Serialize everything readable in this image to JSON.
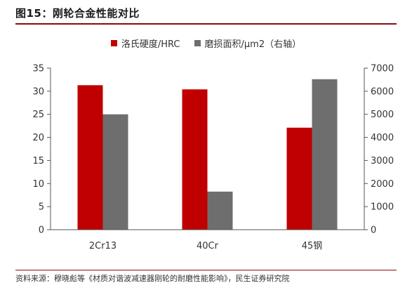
{
  "title": "图15：刚轮合金性能对比",
  "source": "资料来源：穆晓彪等《材质对谐波减速器刚轮的耐磨性能影响》，民生证券研究院",
  "chart_data": {
    "type": "bar",
    "categories": [
      "2Cr13",
      "40Cr",
      "45钢"
    ],
    "series": [
      {
        "name": "洛氏硬度/HRC",
        "axis": "left",
        "color": "#c00000",
        "values": [
          31.3,
          30.4,
          22.1
        ]
      },
      {
        "name": "磨损面积/μm2（右轴）",
        "axis": "right",
        "color": "#6e6e6e",
        "values": [
          5000,
          1650,
          6520
        ]
      }
    ],
    "y_left": {
      "min": 0,
      "max": 35,
      "step": 5,
      "ticks": [
        "0",
        "5",
        "10",
        "15",
        "20",
        "25",
        "30",
        "35"
      ]
    },
    "y_right": {
      "min": 0,
      "max": 7000,
      "step": 1000,
      "ticks": [
        "0",
        "1000",
        "2000",
        "3000",
        "4000",
        "5000",
        "6000",
        "7000"
      ]
    },
    "legend_position": "top-center",
    "grid": false
  }
}
